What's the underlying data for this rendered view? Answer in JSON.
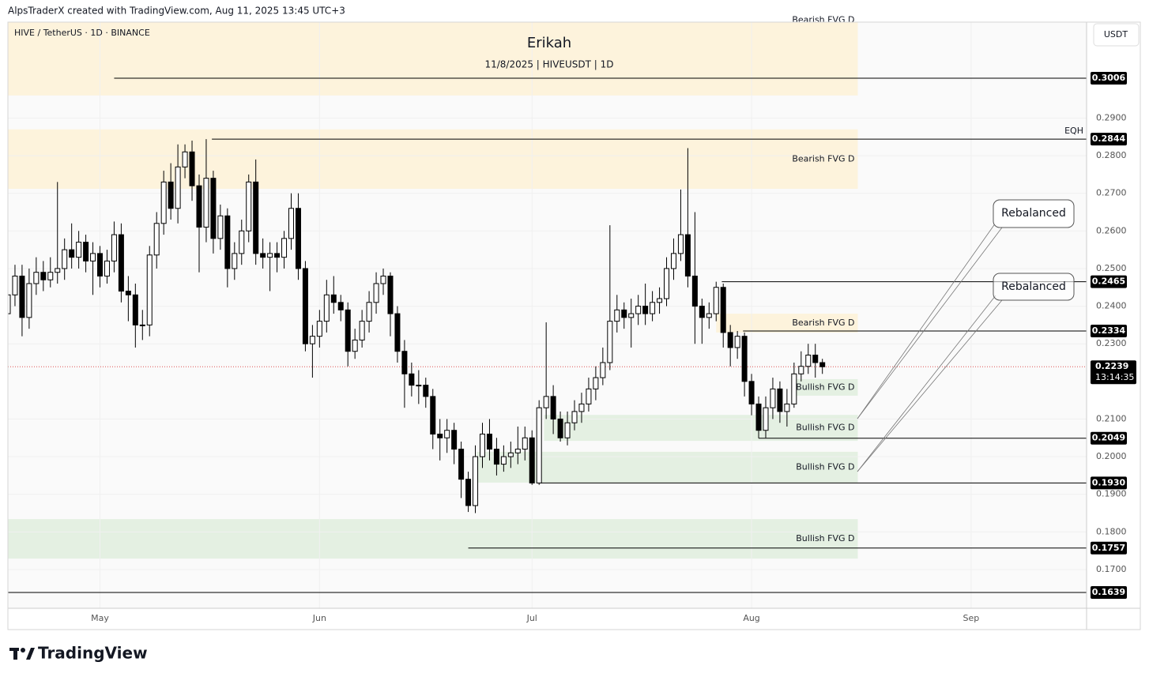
{
  "header": {
    "attribution": "AlpsTraderX created with TradingView.com, Aug 11, 2025 13:45 UTC+3",
    "symbol": "HIVE / TetherUS · 1D · BINANCE",
    "currency": "USDT",
    "logo": "TradingView"
  },
  "chart_data": {
    "type": "candlestick",
    "title": "Erikah",
    "subtitle": "11/8/2025 | HIVEUSDT | 1D",
    "categories": [
      null,
      null,
      null,
      null,
      null,
      null,
      null,
      null,
      null,
      null,
      null,
      null,
      null,
      null,
      null,
      null,
      null,
      null,
      null,
      null,
      null,
      null,
      null,
      null,
      null,
      null,
      null,
      null,
      null,
      null,
      null,
      null,
      null,
      null,
      null,
      null,
      null,
      null,
      null,
      null,
      null,
      null,
      null,
      null,
      null,
      null,
      null,
      null,
      null,
      null,
      null,
      null,
      null,
      null,
      null,
      null,
      null,
      null,
      null,
      null,
      null,
      null,
      null,
      null,
      null,
      null,
      null,
      null,
      null,
      null,
      null,
      null,
      null,
      null,
      null,
      null,
      null,
      null,
      null,
      null,
      null,
      null,
      null,
      null,
      null,
      null,
      null,
      null,
      null,
      null,
      null,
      null,
      null,
      null,
      null,
      null,
      null,
      null,
      null,
      null,
      null,
      null,
      null,
      null,
      null,
      null,
      null,
      null,
      null,
      null,
      null,
      null,
      null,
      null,
      null,
      null
    ],
    "open": [
      0.238,
      0.243,
      0.248,
      0.237,
      0.246,
      0.249,
      0.247,
      0.249,
      0.25,
      0.255,
      0.253,
      0.257,
      0.252,
      0.254,
      0.248,
      0.252,
      0.259,
      0.244,
      0.243,
      0.235,
      0.235,
      0.2536,
      0.262,
      0.273,
      0.266,
      0.277,
      0.281,
      0.272,
      0.261,
      0.274,
      0.258,
      0.264,
      0.25,
      0.254,
      0.26,
      0.273,
      0.254,
      0.253,
      0.254,
      0.253,
      0.258,
      0.266,
      0.25,
      0.23,
      0.232,
      0.236,
      0.243,
      0.241,
      0.239,
      0.228,
      0.231,
      0.236,
      0.241,
      0.246,
      0.248,
      0.238,
      0.228,
      0.222,
      0.219,
      0.219,
      0.216,
      0.206,
      0.205,
      0.207,
      0.202,
      0.194,
      0.187,
      0.2,
      0.206,
      0.202,
      0.198,
      0.2,
      0.201,
      0.202,
      0.205,
      0.193,
      0.213,
      0.216,
      0.21,
      0.205,
      0.209,
      0.212,
      0.214,
      0.218,
      0.221,
      0.225,
      0.236,
      0.239,
      0.237,
      0.238,
      0.24,
      0.238,
      0.241,
      0.242,
      0.25,
      0.254,
      0.259,
      0.248,
      0.24,
      0.237,
      0.238,
      0.245,
      0.233,
      0.229,
      0.232,
      0.22,
      0.214,
      0.207,
      0.213,
      0.218,
      0.212,
      0.214,
      0.222,
      0.224,
      0.227,
      0.225
    ],
    "high": [
      0.247,
      0.251,
      0.251,
      0.25,
      0.253,
      0.252,
      0.253,
      0.273,
      0.258,
      0.262,
      0.26,
      0.259,
      0.257,
      0.256,
      0.255,
      0.2625,
      0.262,
      0.248,
      0.246,
      0.239,
      0.256,
      0.265,
      0.276,
      0.278,
      0.283,
      0.283,
      0.284,
      0.275,
      0.2844,
      0.276,
      0.267,
      0.266,
      0.257,
      0.263,
      0.275,
      0.279,
      0.258,
      0.257,
      0.257,
      0.26,
      0.27,
      0.27,
      0.252,
      0.235,
      0.239,
      0.247,
      0.248,
      0.243,
      0.241,
      0.234,
      0.239,
      0.244,
      0.249,
      0.25,
      0.249,
      0.24,
      0.231,
      0.225,
      0.223,
      0.221,
      0.218,
      0.21,
      0.21,
      0.209,
      0.204,
      0.196,
      0.203,
      0.209,
      0.21,
      0.205,
      0.203,
      0.204,
      0.208,
      0.208,
      0.207,
      0.215,
      0.2357,
      0.219,
      0.212,
      0.212,
      0.215,
      0.217,
      0.221,
      0.224,
      0.229,
      0.2615,
      0.243,
      0.241,
      0.242,
      0.243,
      0.246,
      0.244,
      0.245,
      0.253,
      0.258,
      0.271,
      0.282,
      0.265,
      0.242,
      0.241,
      0.2465,
      0.246,
      0.235,
      0.2334,
      0.233,
      0.222,
      0.216,
      0.216,
      0.221,
      0.22,
      0.218,
      0.225,
      0.228,
      0.23,
      0.23,
      0.226
    ],
    "low": [
      0.235,
      0.24,
      0.232,
      0.234,
      0.243,
      0.244,
      0.245,
      0.246,
      0.247,
      0.25,
      0.25,
      0.249,
      0.243,
      0.245,
      0.246,
      0.249,
      0.241,
      0.236,
      0.229,
      0.231,
      0.232,
      0.25,
      0.259,
      0.263,
      0.262,
      0.274,
      0.268,
      0.249,
      0.257,
      0.254,
      0.255,
      0.245,
      0.247,
      0.251,
      0.257,
      0.251,
      0.25,
      0.244,
      0.249,
      0.25,
      0.255,
      0.247,
      0.228,
      0.221,
      0.229,
      0.233,
      0.238,
      0.236,
      0.224,
      0.226,
      0.229,
      0.233,
      0.238,
      0.243,
      0.232,
      0.225,
      0.213,
      0.216,
      0.214,
      0.213,
      0.202,
      0.199,
      0.201,
      0.198,
      0.189,
      0.1853,
      0.185,
      0.197,
      0.199,
      0.195,
      0.196,
      0.197,
      0.198,
      0.199,
      0.1925,
      0.1925,
      0.21,
      0.206,
      0.204,
      0.203,
      0.207,
      0.209,
      0.212,
      0.215,
      0.219,
      0.223,
      0.233,
      0.234,
      0.229,
      0.235,
      0.235,
      0.236,
      0.238,
      0.24,
      0.247,
      0.252,
      0.245,
      0.23,
      0.23,
      0.234,
      0.236,
      0.229,
      0.224,
      0.226,
      0.216,
      0.211,
      0.2049,
      0.205,
      0.21,
      0.209,
      0.208,
      0.213,
      0.22,
      0.222,
      0.221,
      0.222
    ],
    "close": [
      0.243,
      0.248,
      0.237,
      0.246,
      0.249,
      0.247,
      0.249,
      0.25,
      0.255,
      0.253,
      0.257,
      0.252,
      0.254,
      0.248,
      0.252,
      0.259,
      0.244,
      0.243,
      0.235,
      0.235,
      0.2536,
      0.262,
      0.273,
      0.266,
      0.277,
      0.281,
      0.272,
      0.261,
      0.274,
      0.258,
      0.264,
      0.25,
      0.254,
      0.26,
      0.273,
      0.254,
      0.253,
      0.254,
      0.253,
      0.258,
      0.266,
      0.25,
      0.23,
      0.232,
      0.236,
      0.243,
      0.241,
      0.239,
      0.228,
      0.231,
      0.236,
      0.241,
      0.246,
      0.248,
      0.238,
      0.228,
      0.222,
      0.219,
      0.219,
      0.216,
      0.206,
      0.205,
      0.207,
      0.202,
      0.194,
      0.187,
      0.2,
      0.206,
      0.202,
      0.198,
      0.2,
      0.201,
      0.202,
      0.205,
      0.193,
      0.213,
      0.216,
      0.21,
      0.205,
      0.209,
      0.212,
      0.214,
      0.218,
      0.221,
      0.225,
      0.236,
      0.239,
      0.237,
      0.238,
      0.24,
      0.238,
      0.241,
      0.242,
      0.25,
      0.254,
      0.259,
      0.248,
      0.24,
      0.237,
      0.238,
      0.245,
      0.233,
      0.229,
      0.232,
      0.22,
      0.214,
      0.207,
      0.213,
      0.218,
      0.212,
      0.214,
      0.222,
      0.224,
      0.227,
      0.225,
      0.2239
    ],
    "up_color": "#ffffff",
    "down_color": "#000000",
    "xlim": [
      0,
      152.3
    ],
    "xticks": [
      {
        "value": 13,
        "label": "May"
      },
      {
        "value": 44,
        "label": "Jun"
      },
      {
        "value": 74,
        "label": "Jul"
      },
      {
        "value": 105,
        "label": "Aug"
      },
      {
        "value": 136,
        "label": "Sep"
      }
    ],
    "ylim": [
      0.1597,
      0.3155
    ],
    "yticks": [
      {
        "value": 0.17,
        "label": "0.1700"
      },
      {
        "value": 0.18,
        "label": "0.1800"
      },
      {
        "value": 0.19,
        "label": "0.1900"
      },
      {
        "value": 0.2,
        "label": "0.2000"
      },
      {
        "value": 0.21,
        "label": "0.2100"
      },
      {
        "value": 0.23,
        "label": "0.2300"
      },
      {
        "value": 0.24,
        "label": "0.2400"
      },
      {
        "value": 0.25,
        "label": "0.2500"
      },
      {
        "value": 0.26,
        "label": "0.2600"
      },
      {
        "value": 0.27,
        "label": "0.2700"
      },
      {
        "value": 0.28,
        "label": "0.2800"
      },
      {
        "value": 0.29,
        "label": "0.2900"
      }
    ],
    "grid": true,
    "zones": [
      {
        "label": "Bearish FVG D",
        "from": 0.296,
        "to": 0.336,
        "start": 0,
        "end": 120,
        "color": "#fdf3dc"
      },
      {
        "label": "Bearish FVG D",
        "from": 0.2712,
        "to": 0.287,
        "start": 0,
        "end": 120,
        "color": "#fdf3dc"
      },
      {
        "label": "Bearish FVG D",
        "from": 0.233,
        "to": 0.238,
        "start": 100,
        "end": 120,
        "color": "#fdf3dc"
      },
      {
        "label": "Bullish FVG D",
        "from": 0.2162,
        "to": 0.2206,
        "start": 110.8,
        "end": 120,
        "color": "#e4f0e2"
      },
      {
        "label": "Bullish FVG D",
        "from": 0.2042,
        "to": 0.2111,
        "start": 75.7,
        "end": 120,
        "color": "#e4f0e2"
      },
      {
        "label": "Bullish FVG D",
        "from": 0.1931,
        "to": 0.2013,
        "start": 66.2,
        "end": 120,
        "color": "#e4f0e2"
      },
      {
        "label": "Bullish FVG D",
        "from": 0.1729,
        "to": 0.1834,
        "start": 0,
        "end": 120,
        "color": "#e4f0e2"
      }
    ],
    "levels": [
      {
        "value": 0.3006,
        "label": "0.3006",
        "start": 15
      },
      {
        "value": 0.2844,
        "label": "0.2844",
        "start": 28.8
      },
      {
        "value": 0.2465,
        "label": "0.2465",
        "start": 100.8
      },
      {
        "value": 0.2334,
        "label": "0.2334",
        "start": 103.8
      },
      {
        "value": 0.2049,
        "label": "0.2049",
        "start": 106
      },
      {
        "value": 0.193,
        "label": "0.1930",
        "start": 74.9
      },
      {
        "value": 0.1757,
        "label": "0.1757",
        "start": 65
      },
      {
        "value": 0.1639,
        "label": "0.1639",
        "start": 0
      }
    ],
    "last_price": {
      "value": 0.2239,
      "label": "0.2239",
      "countdown": "13:14:35"
    },
    "annotations": [
      "EQH",
      "Rebalanced",
      "Rebalanced"
    ]
  }
}
